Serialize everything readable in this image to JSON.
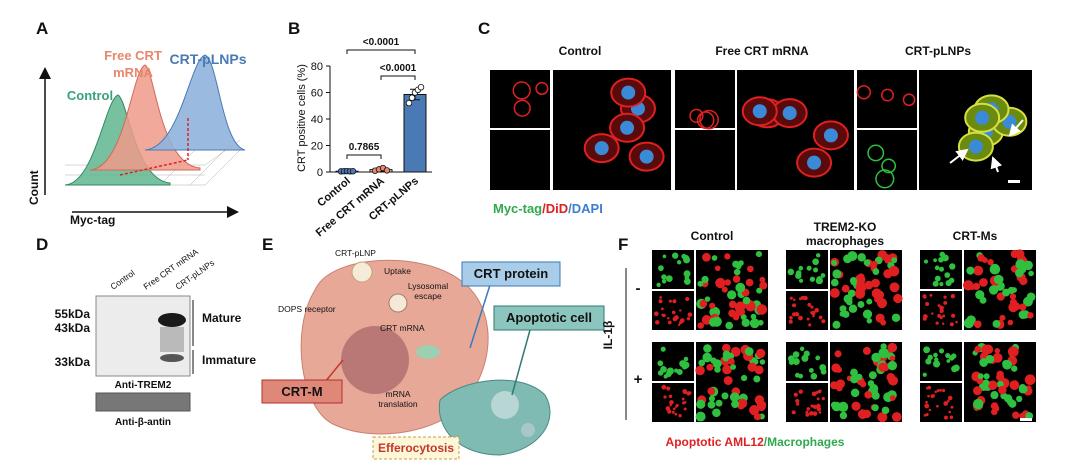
{
  "panels": {
    "a": {
      "label": "A",
      "free_crt": [
        "Free CRT",
        "mRNA"
      ],
      "crt_plnps": "CRT-pLNPs",
      "control": "Control",
      "y_axis": "Count",
      "x_axis": "Myc-tag"
    },
    "c": {
      "label": "C",
      "columns": [
        "Control",
        "Free CRT mRNA",
        "CRT-pLNPs"
      ],
      "legend": [
        "Myc-tag",
        "/",
        "DiD",
        "/",
        "DAPI"
      ]
    },
    "d": {
      "label": "D",
      "lanes": [
        "Control",
        "Free CRT mRNA",
        "CRT-pLNPs"
      ],
      "markers": [
        "55kDa",
        "43kDa",
        "33kDa"
      ],
      "mature": "Mature",
      "immature": "Immature",
      "blot1": "Anti-TREM2",
      "blot2": "Anti-β-antin"
    },
    "e": {
      "label": "E",
      "plnp": "CRT-pLNP",
      "uptake": "Uptake",
      "escape": [
        "Lysosomal",
        "escape"
      ],
      "receptor": "DOPS receptor",
      "mrna": "CRT mRNA",
      "translation": [
        "mRNA",
        "translation"
      ],
      "protein": "CRT protein",
      "apoptotic": "Apoptotic cell",
      "crtm": "CRT-M",
      "efferocytosis": "Efferocytosis"
    },
    "f": {
      "label": "F",
      "columns": [
        "Control",
        [
          "TREM2-KO",
          "macrophages"
        ],
        "CRT-Ms"
      ],
      "row_title": "IL-1β",
      "rows": [
        "-",
        "+"
      ],
      "legend": [
        "Apoptotic AML12",
        "/",
        "Macrophages"
      ]
    }
  },
  "chart_data": {
    "type": "bar",
    "panel_label": "B",
    "y_label": "CRT positive cells (%)",
    "categories": [
      "Control",
      "Free CRT mRNA",
      "CRT-pLNPs"
    ],
    "values": [
      0.6,
      1.8,
      58.5
    ],
    "errors": [
      0.3,
      1,
      4
    ],
    "colors": [
      "#c8c8c8",
      "#f4f4f4",
      "#4a7ab5"
    ],
    "points": [
      [
        0.5,
        0.6,
        0.7,
        0.5,
        0.6
      ],
      [
        1,
        2,
        3,
        1.2
      ],
      [
        52,
        56,
        60,
        62,
        64
      ]
    ],
    "point_colors": [
      "#4a7ab5",
      "#e8866e",
      "#ffffff"
    ],
    "ylim": [
      0,
      80
    ],
    "yticks": [
      0,
      20,
      40,
      60,
      80
    ],
    "annotations": [
      "<0.0001",
      "<0.0001",
      "0.7865"
    ]
  }
}
